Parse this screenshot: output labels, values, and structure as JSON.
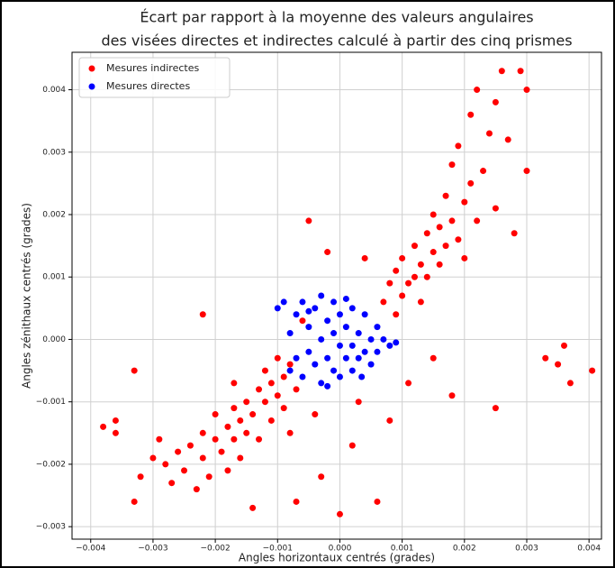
{
  "chart_data": {
    "type": "scatter",
    "title": "Écart par rapport à la moyenne des valeurs angulaires",
    "subtitle": "des visées directes et indirectes calculé à partir des cinq prismes",
    "x_label": "Angles horizontaux centrés (grades)",
    "y_label": "Angles zénithaux centrés (grades)",
    "xlim": [
      -0.0043,
      0.0042
    ],
    "ylim": [
      -0.0032,
      0.0046
    ],
    "xticks": [
      {
        "value": -0.004,
        "label": "−0.004"
      },
      {
        "value": -0.003,
        "label": "−0.003"
      },
      {
        "value": -0.002,
        "label": "−0.002"
      },
      {
        "value": -0.001,
        "label": "−0.001"
      },
      {
        "value": 0,
        "label": "0.000"
      },
      {
        "value": 0.001,
        "label": "0.001"
      },
      {
        "value": 0.002,
        "label": "0.002"
      },
      {
        "value": 0.003,
        "label": "0.003"
      },
      {
        "value": 0.004,
        "label": "0.004"
      }
    ],
    "yticks": [
      {
        "value": -0.003,
        "label": "−0.003"
      },
      {
        "value": -0.002,
        "label": "−0.002"
      },
      {
        "value": -0.001,
        "label": "−0.001"
      },
      {
        "value": 0,
        "label": "0.000"
      },
      {
        "value": 0.001,
        "label": "0.001"
      },
      {
        "value": 0.002,
        "label": "0.002"
      },
      {
        "value": 0.003,
        "label": "0.003"
      },
      {
        "value": 0.004,
        "label": "0.004"
      }
    ],
    "grid": true,
    "legend": "upper left",
    "series": [
      {
        "name": "Mesures indirectes",
        "color": "#ff0000",
        "x": [
          -0.0038,
          -0.0036,
          -0.0036,
          -0.0033,
          -0.0032,
          -0.003,
          -0.0029,
          -0.0028,
          -0.0027,
          -0.0026,
          -0.0025,
          -0.0024,
          -0.0023,
          -0.0022,
          -0.0022,
          -0.0021,
          -0.002,
          -0.002,
          -0.0019,
          -0.0018,
          -0.0018,
          -0.0017,
          -0.0017,
          -0.0016,
          -0.0016,
          -0.0015,
          -0.0015,
          -0.0014,
          -0.0014,
          -0.0013,
          -0.0013,
          -0.0012,
          -0.0012,
          -0.0011,
          -0.0011,
          -0.001,
          -0.001,
          -0.0009,
          -0.0009,
          -0.0008,
          -0.0008,
          -0.0007,
          -0.0007,
          -0.0006,
          -0.0005,
          -0.0004,
          -0.0003,
          -0.0002,
          0,
          0.0002,
          0.0004,
          0.0006,
          0.0007,
          0.0008,
          0.0008,
          0.0009,
          0.0009,
          0.001,
          0.001,
          0.0011,
          0.0011,
          0.0012,
          0.0012,
          0.0013,
          0.0013,
          0.0014,
          0.0014,
          0.0015,
          0.0015,
          0.0016,
          0.0016,
          0.0017,
          0.0017,
          0.0018,
          0.0018,
          0.0019,
          0.0019,
          0.002,
          0.002,
          0.0021,
          0.0021,
          0.0022,
          0.0022,
          0.0023,
          0.0024,
          0.0025,
          0.0025,
          0.0026,
          0.0027,
          0.0028,
          0.0029,
          0.003,
          0.003,
          0.0033,
          0.0035,
          0.0036,
          0.0037,
          0.00405,
          0.0025,
          0.0018,
          -0.0022,
          -0.0033,
          -0.0017,
          0.0003,
          0.0015
        ],
        "values": [
          -0.0014,
          -0.0013,
          -0.0015,
          -0.0026,
          -0.0022,
          -0.0019,
          -0.0016,
          -0.002,
          -0.0023,
          -0.0018,
          -0.0021,
          -0.0017,
          -0.0024,
          -0.0019,
          -0.0015,
          -0.0022,
          -0.0016,
          -0.0012,
          -0.0018,
          -0.0014,
          -0.0021,
          -0.0011,
          -0.0016,
          -0.0019,
          -0.0013,
          -0.001,
          -0.0015,
          -0.0027,
          -0.0012,
          -0.0008,
          -0.0016,
          -0.001,
          -0.0005,
          -0.0013,
          -0.0007,
          -0.0009,
          -0.0003,
          -0.0011,
          -0.0006,
          -0.0004,
          -0.0015,
          -0.0008,
          -0.0026,
          0.0003,
          0.0019,
          -0.0012,
          -0.0022,
          0.0014,
          -0.0028,
          -0.0017,
          0.0013,
          -0.0026,
          0.0006,
          0.0009,
          -0.0013,
          0.0011,
          0.0004,
          0.0007,
          0.0013,
          0.0009,
          -0.0007,
          0.0015,
          0.001,
          0.0012,
          0.0006,
          0.0017,
          0.001,
          0.0014,
          0.002,
          0.0012,
          0.0018,
          0.0023,
          0.0015,
          0.0019,
          0.0028,
          0.0016,
          0.0031,
          0.0022,
          0.0013,
          0.0025,
          0.0036,
          0.0019,
          0.004,
          0.0027,
          0.0033,
          0.0021,
          0.0038,
          0.0043,
          0.0032,
          0.0017,
          0.0043,
          0.004,
          0.0027,
          -0.0003,
          -0.0004,
          -0.0001,
          -0.0007,
          -0.0005,
          -0.0011,
          -0.0009,
          0.0004,
          -0.0005,
          -0.0007,
          -0.001,
          -0.0003
        ]
      },
      {
        "name": "Mesures directes",
        "color": "#0000ff",
        "x": [
          -0.0009,
          -0.001,
          -0.0008,
          -0.0008,
          -0.0007,
          -0.0007,
          -0.0006,
          -0.0006,
          -0.0005,
          -0.0005,
          -0.0004,
          -0.0004,
          -0.0003,
          -0.0003,
          -0.0003,
          -0.0002,
          -0.0002,
          -0.0001,
          -0.0001,
          -0.0001,
          0,
          0,
          0,
          0.0001,
          0.0001,
          0.0002,
          0.0002,
          0.0002,
          0.0003,
          0.0003,
          0.0004,
          0.0004,
          0.0005,
          0.0005,
          0.0006,
          0.0006,
          0.0007,
          0.0008,
          0.0009,
          -0.0005,
          0.0001,
          -0.0002,
          0.00035
        ],
        "values": [
          0.0006,
          0.0005,
          0.0001,
          -0.0005,
          0.0004,
          -0.0003,
          0.0006,
          -0.0006,
          0.0002,
          -0.0002,
          0.0005,
          -0.0004,
          0.0007,
          0,
          -0.0007,
          0.0003,
          -0.0003,
          0.0006,
          0.0001,
          -0.0005,
          0.0004,
          -0.0001,
          -0.0006,
          0.0002,
          -0.0003,
          0.0005,
          -0.0001,
          -0.0005,
          0.0001,
          -0.0003,
          0.0004,
          -0.0002,
          0,
          -0.0004,
          0.0002,
          -0.0002,
          0,
          -0.0001,
          -5e-05,
          0.00045,
          0.00065,
          -0.00075,
          -0.0006
        ]
      }
    ]
  }
}
